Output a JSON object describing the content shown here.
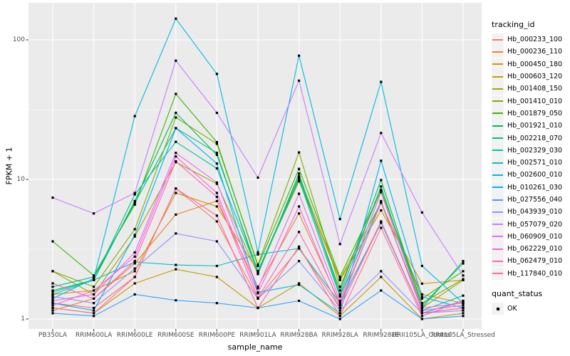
{
  "chart_data": {
    "type": "line",
    "title": "",
    "xlabel": "sample_name",
    "ylabel": "FPKM + 1",
    "legend_title": "tracking_id",
    "legend_position": "right",
    "y_scale": "log10",
    "y_ticks": [
      1,
      10,
      100
    ],
    "ylim": [
      1,
      160
    ],
    "grid": true,
    "panel_color": "#EBEBEB",
    "gridline_color": "#FFFFFF",
    "tick_label_color": "#4D4D4D",
    "point_marker": {
      "shape": "filled-square",
      "color": "#000000",
      "legend_title": "quant_status",
      "legend_label": "OK"
    },
    "categories": [
      "PB350LA",
      "RRIM600LA",
      "RRIM600LE",
      "RRIM600SE",
      "RRIM600PE",
      "RRIM901LA",
      "RRIM928BA",
      "RRIM928LA",
      "RRIM928LE",
      "RRII105LA_Control",
      "RRII105LA_Stressed"
    ],
    "series": [
      {
        "name": "Hb_000233_100",
        "color": "#F8766D",
        "values": [
          1.3,
          1.2,
          2.0,
          8.6,
          5.0,
          1.4,
          3.2,
          1.2,
          4.9,
          1.1,
          1.2
        ]
      },
      {
        "name": "Hb_000236_110",
        "color": "#EA8331",
        "values": [
          1.15,
          1.4,
          2.5,
          5.6,
          7.0,
          1.7,
          5.7,
          1.3,
          6.8,
          1.5,
          1.3
        ]
      },
      {
        "name": "Hb_000450_180",
        "color": "#D89000",
        "values": [
          1.5,
          1.6,
          2.2,
          8.0,
          6.4,
          2.2,
          9.7,
          1.9,
          6.0,
          1.79,
          1.9
        ]
      },
      {
        "name": "Hb_000603_120",
        "color": "#C09B00",
        "values": [
          1.2,
          1.1,
          1.8,
          2.27,
          2.0,
          1.2,
          1.8,
          1.05,
          2.0,
          1.0,
          1.1
        ]
      },
      {
        "name": "Hb_001408_150",
        "color": "#A3A500",
        "values": [
          2.2,
          1.5,
          3.9,
          13.3,
          9.3,
          2.1,
          10.5,
          1.93,
          6.8,
          1.2,
          1.9
        ]
      },
      {
        "name": "Hb_001410_010",
        "color": "#7CAE00",
        "values": [
          2.2,
          1.7,
          4.4,
          27.8,
          18.0,
          2.45,
          15.6,
          1.7,
          8.4,
          1.3,
          1.93
        ]
      },
      {
        "name": "Hb_001879_050",
        "color": "#39B600",
        "values": [
          3.6,
          2.05,
          6.6,
          41.0,
          18.5,
          2.4,
          11.9,
          2.0,
          8.3,
          1.4,
          2.2
        ]
      },
      {
        "name": "Hb_001921_010",
        "color": "#00BB4E",
        "values": [
          1.6,
          1.9,
          7.0,
          30.0,
          15.0,
          2.2,
          10.4,
          1.6,
          9.9,
          1.25,
          2.5
        ]
      },
      {
        "name": "Hb_002218_070",
        "color": "#00BF7D",
        "values": [
          1.7,
          2.0,
          6.8,
          23.3,
          15.5,
          2.1,
          11.0,
          1.5,
          8.9,
          1.2,
          2.6
        ]
      },
      {
        "name": "Hb_002329_030",
        "color": "#00C1A3",
        "values": [
          1.56,
          1.9,
          7.8,
          18.6,
          12.0,
          2.17,
          10.0,
          1.45,
          7.0,
          1.15,
          1.47
        ]
      },
      {
        "name": "Hb_002571_010",
        "color": "#00BFC4",
        "values": [
          1.5,
          1.9,
          2.56,
          2.44,
          2.4,
          2.9,
          3.2,
          1.3,
          4.9,
          1.1,
          1.35
        ]
      },
      {
        "name": "Hb_002600_010",
        "color": "#00BAE0",
        "values": [
          1.4,
          1.95,
          28.4,
          142.0,
          57.0,
          3.0,
          77.0,
          5.2,
          50.0,
          2.4,
          1.3
        ]
      },
      {
        "name": "Hb_010261_030",
        "color": "#00B0F6",
        "values": [
          1.3,
          1.15,
          4.0,
          23.3,
          13.0,
          1.55,
          1.76,
          1.1,
          13.6,
          1.44,
          1.2
        ]
      },
      {
        "name": "Hb_027556_040",
        "color": "#35A2FF",
        "values": [
          1.1,
          1.05,
          1.5,
          1.36,
          1.3,
          1.2,
          1.35,
          1.0,
          1.6,
          1.0,
          1.05
        ]
      },
      {
        "name": "Hb_043939_010",
        "color": "#9590FF",
        "values": [
          1.45,
          1.3,
          2.3,
          4.1,
          3.6,
          1.4,
          2.6,
          1.15,
          2.2,
          1.1,
          1.15
        ]
      },
      {
        "name": "Hb_057079_020",
        "color": "#C77CFF",
        "values": [
          7.4,
          5.7,
          8.0,
          71.0,
          30.0,
          10.3,
          51.0,
          3.44,
          21.5,
          5.8,
          2.05
        ]
      },
      {
        "name": "Hb_060909_010",
        "color": "#E76BF3",
        "values": [
          1.35,
          1.5,
          3.0,
          15.5,
          9.5,
          1.66,
          7.9,
          1.35,
          8.1,
          1.2,
          1.3
        ]
      },
      {
        "name": "Hb_062229_010",
        "color": "#FA62DB",
        "values": [
          1.25,
          1.6,
          2.8,
          14.6,
          8.0,
          1.53,
          6.4,
          1.25,
          6.9,
          1.15,
          1.25
        ]
      },
      {
        "name": "Hb_062479_010",
        "color": "#FF62BC",
        "values": [
          1.8,
          1.4,
          2.6,
          13.5,
          7.5,
          1.42,
          4.2,
          1.2,
          5.0,
          1.1,
          1.2
        ]
      },
      {
        "name": "Hb_117840_010",
        "color": "#FF6A98",
        "values": [
          1.2,
          1.1,
          2.0,
          8.6,
          5.5,
          1.2,
          3.3,
          1.05,
          4.5,
          1.05,
          1.35
        ]
      }
    ]
  }
}
